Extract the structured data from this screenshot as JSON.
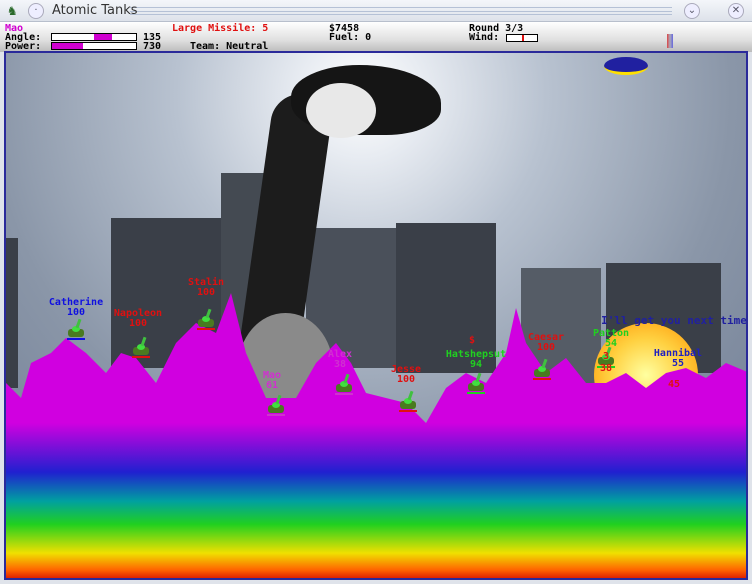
{
  "window": {
    "title": "Atomic Tanks",
    "icons": [
      "app-icon",
      "menu-icon",
      "minimize-icon",
      "close-icon"
    ]
  },
  "hud": {
    "player": "Mao",
    "player_color": "#d000d0",
    "angle_label": "Angle:",
    "angle_value": "135",
    "angle_fraction": 0.55,
    "power_label": "Power:",
    "power_value": "730",
    "power_fraction": 0.37,
    "weapon": "Large Missile: 5",
    "team": "Team: Neutral",
    "money": "$7458",
    "fuel": "Fuel: 0",
    "round": "Round 3/3",
    "wind_label": "Wind:",
    "wind_fraction": 0.5
  },
  "speech": "I'll get you next time",
  "tanks": [
    {
      "name": "Catherine",
      "health": "100",
      "color": "#1010e0"
    },
    {
      "name": "Napoleon",
      "health": "100",
      "color": "#e01010"
    },
    {
      "name": "Stalin",
      "health": "100",
      "color": "#e01010"
    },
    {
      "name": "Mao",
      "health": "61",
      "color": "#d030d0"
    },
    {
      "name": "Alex",
      "health": "38",
      "color": "#d030d0"
    },
    {
      "name": "Jesse",
      "health": "100",
      "color": "#e01010"
    },
    {
      "name": "Hatshepsut",
      "health": "94",
      "color": "#20d020"
    },
    {
      "name": "Caesar",
      "health": "100",
      "color": "#e01010"
    },
    {
      "name": "Patton",
      "health": "54",
      "color": "#20d020"
    },
    {
      "name": "Hannibal",
      "health": "55",
      "color": "#2020c0"
    }
  ],
  "floating_numbers": [
    {
      "text": "3",
      "color": "#e01010"
    },
    {
      "text": "38",
      "color": "#e01010"
    },
    {
      "text": "45",
      "color": "#e01010"
    },
    {
      "text": "$",
      "color": "#e01010"
    }
  ]
}
